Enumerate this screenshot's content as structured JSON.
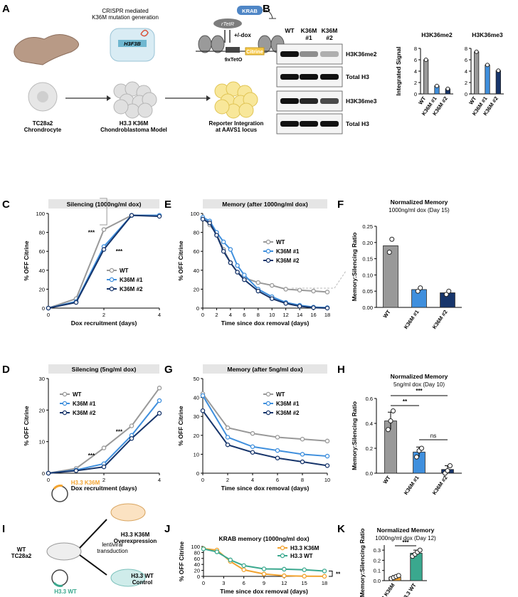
{
  "panel_letters": [
    "A",
    "B",
    "C",
    "D",
    "E",
    "F",
    "G",
    "H",
    "I",
    "J",
    "K"
  ],
  "colors": {
    "wt": "#999999",
    "k1": "#3f8fdd",
    "k2": "#17356b",
    "k36m_ox": "#f2a330",
    "wt_ox": "#3aa88e"
  },
  "panel_a": {
    "crispr_label": "CRISPR mediated\nK36M mutation generation",
    "gene_label": "H3F3B",
    "krab": "KRAB",
    "rtetr": "rTetR",
    "dox": "+/-dox",
    "teto": "9xTetO",
    "citrine": "Citrine",
    "cell1": "TC28a2\nChrondrocyte",
    "cell2": "H3.3 K36M\nChondroblastoma Model",
    "cell3": "Reporter Integration\nat AAVS1 locus"
  },
  "panel_b": {
    "lanes": [
      "WT",
      "K36M\n#1",
      "K36M\n#2"
    ],
    "blot_labels": [
      "H3K36me2",
      "Total H3",
      "H3K36me3",
      "Total H3"
    ]
  },
  "chart_data": [
    {
      "id": "B1",
      "type": "bar",
      "title": "H3K36me2",
      "ylabel": "Integrated Signal",
      "categories": [
        "WT",
        "K36M #1",
        "K36M #2"
      ],
      "values": [
        6.0,
        1.4,
        0.9
      ],
      "ylim": [
        0,
        8
      ],
      "yticks": [
        0,
        2,
        4,
        6,
        8
      ]
    },
    {
      "id": "B2",
      "type": "bar",
      "title": "H3K36me3",
      "ylabel": "",
      "categories": [
        "WT",
        "K36M #1",
        "K36M #2"
      ],
      "values": [
        7.4,
        5.1,
        4.1
      ],
      "ylim": [
        0,
        8
      ],
      "yticks": [
        0,
        2,
        4,
        6,
        8
      ]
    },
    {
      "id": "C",
      "type": "line",
      "title": "Silencing (1000ng/ml dox)",
      "xlabel": "Dox recruitment (days)",
      "ylabel": "% OFF Citrine",
      "xlim": [
        0,
        4
      ],
      "ylim": [
        0,
        100
      ],
      "xticks": [
        0,
        2,
        4
      ],
      "yticks": [
        0,
        20,
        40,
        60,
        80,
        100
      ],
      "annotations": [
        "***",
        "***"
      ],
      "series": [
        {
          "name": "WT",
          "x": [
            0,
            1,
            2,
            3,
            4
          ],
          "values": [
            0,
            10,
            83,
            98,
            98
          ]
        },
        {
          "name": "K36M #1",
          "x": [
            0,
            1,
            2,
            3,
            4
          ],
          "values": [
            0,
            7,
            65,
            98,
            98
          ]
        },
        {
          "name": "K36M #2",
          "x": [
            0,
            1,
            2,
            3,
            4
          ],
          "values": [
            0,
            6,
            62,
            98,
            97
          ]
        }
      ]
    },
    {
      "id": "D",
      "type": "line",
      "title": "Silencing (5ng/ml dox)",
      "xlabel": "Dox recruitment (days)",
      "ylabel": "% OFF Citrine",
      "xlim": [
        0,
        4
      ],
      "ylim": [
        0,
        30
      ],
      "xticks": [
        0,
        2,
        4
      ],
      "yticks": [
        0,
        10,
        20,
        30
      ],
      "annotations": [
        "***",
        "***"
      ],
      "series": [
        {
          "name": "WT",
          "x": [
            0,
            1,
            2,
            3,
            4
          ],
          "values": [
            0,
            1.5,
            8,
            15,
            27
          ]
        },
        {
          "name": "K36M #1",
          "x": [
            0,
            1,
            2,
            3,
            4
          ],
          "values": [
            0,
            1,
            3,
            12,
            23
          ]
        },
        {
          "name": "K36M #2",
          "x": [
            0,
            1,
            2,
            3,
            4
          ],
          "values": [
            0,
            0.8,
            2,
            11,
            19
          ]
        }
      ]
    },
    {
      "id": "E",
      "type": "line",
      "title": "Memory (after 1000ng/ml dox)",
      "xlabel": "Time since dox removal (days)",
      "ylabel": "% OFF Citrine",
      "xlim": [
        0,
        18
      ],
      "ylim": [
        0,
        100
      ],
      "xticks": [
        0,
        2,
        4,
        6,
        8,
        10,
        12,
        14,
        16,
        18
      ],
      "yticks": [
        0,
        20,
        40,
        60,
        80,
        100
      ],
      "series": [
        {
          "name": "WT",
          "x": [
            0,
            1,
            2,
            3,
            4,
            5,
            6,
            8,
            10,
            12,
            14,
            16,
            18
          ],
          "values": [
            95,
            88,
            78,
            62,
            48,
            38,
            32,
            27,
            24,
            20,
            19,
            18,
            17
          ]
        },
        {
          "name": "K36M #1",
          "x": [
            0,
            1,
            2,
            3,
            4,
            5,
            6,
            8,
            10,
            12,
            14,
            16,
            18
          ],
          "values": [
            96,
            92,
            80,
            70,
            62,
            45,
            35,
            20,
            12,
            6,
            3,
            1,
            0.5
          ]
        },
        {
          "name": "K36M #2",
          "x": [
            0,
            1,
            2,
            3,
            4,
            5,
            6,
            8,
            10,
            12,
            14,
            16,
            18
          ],
          "values": [
            94,
            90,
            77,
            60,
            48,
            38,
            30,
            18,
            10,
            5,
            2,
            0.5,
            0
          ]
        }
      ]
    },
    {
      "id": "F",
      "type": "bar",
      "title": "Normalized Memory",
      "subtitle": "1000ng/ml dox (Day 15)",
      "ylabel": "Memory:Silencing Ratio",
      "categories": [
        "WT",
        "K36M #1",
        "K36M #2"
      ],
      "values": [
        0.19,
        0.055,
        0.045
      ],
      "points": [
        [
          0.17,
          0.21
        ],
        [
          0.05,
          0.06
        ],
        [
          0.04,
          0.05
        ]
      ],
      "ylim": [
        0,
        0.25
      ],
      "yticks": [
        0.0,
        0.05,
        0.1,
        0.15,
        0.2,
        0.25
      ]
    },
    {
      "id": "G",
      "type": "line",
      "title": "Memory (after 5ng/ml dox)",
      "xlabel": "Time since dox removal (days)",
      "ylabel": "% OFF Citrine",
      "xlim": [
        0,
        10
      ],
      "ylim": [
        0,
        50
      ],
      "xticks": [
        0,
        2,
        4,
        6,
        8,
        10
      ],
      "yticks": [
        0,
        10,
        20,
        30,
        40,
        50
      ],
      "series": [
        {
          "name": "WT",
          "x": [
            0,
            2,
            4,
            6,
            8,
            10
          ],
          "values": [
            42,
            24,
            21,
            19,
            18,
            17
          ]
        },
        {
          "name": "K36M #1",
          "x": [
            0,
            2,
            4,
            6,
            8,
            10
          ],
          "values": [
            41,
            19,
            14,
            12,
            10,
            9
          ]
        },
        {
          "name": "K36M #2",
          "x": [
            0,
            2,
            4,
            6,
            8,
            10
          ],
          "values": [
            33,
            15,
            11,
            8,
            6,
            4
          ]
        }
      ]
    },
    {
      "id": "H",
      "type": "bar",
      "title": "Normalized Memory",
      "subtitle": "5ng/ml dox (Day 10)",
      "ylabel": "Memory:Silencing Ratio",
      "categories": [
        "WT",
        "K36M #1",
        "K36M #2"
      ],
      "values": [
        0.42,
        0.17,
        0.03
      ],
      "errors": [
        0.07,
        0.04,
        0.03
      ],
      "points": [
        [
          0.35,
          0.42,
          0.5
        ],
        [
          0.13,
          0.18,
          0.2
        ],
        [
          0.0,
          0.02,
          0.06
        ]
      ],
      "ylim": [
        0,
        0.6
      ],
      "yticks": [
        0.0,
        0.2,
        0.4,
        0.6
      ],
      "annotations": [
        "***",
        "**",
        "ns"
      ]
    },
    {
      "id": "J",
      "type": "line",
      "title": "KRAB memory (1000ng/ml dox)",
      "xlabel": "Time since dox removal (days)",
      "ylabel": "% OFF Citrine",
      "xlim": [
        0,
        18
      ],
      "ylim": [
        0,
        100
      ],
      "xticks": [
        0,
        3,
        6,
        9,
        12,
        15,
        18
      ],
      "yticks": [
        0,
        20,
        40,
        60,
        80,
        100
      ],
      "annotations": [
        "**"
      ],
      "series": [
        {
          "name": "H3.3 K36M",
          "x": [
            0,
            2,
            4,
            6,
            9,
            12,
            15,
            18
          ],
          "values": [
            93,
            88,
            50,
            22,
            8,
            2,
            0.5,
            0.2
          ]
        },
        {
          "name": "H3.3 WT",
          "x": [
            0,
            2,
            4,
            6,
            9,
            12,
            15,
            18
          ],
          "values": [
            92,
            82,
            55,
            36,
            25,
            24,
            22,
            18
          ]
        }
      ]
    },
    {
      "id": "K",
      "type": "bar",
      "title": "Normalized Memory",
      "subtitle": "1000ng/ml dox (Day 12)",
      "ylabel": "Memory:Silencing Ratio",
      "categories": [
        "H3.3 K36M",
        "H3.3 WT"
      ],
      "values": [
        0.035,
        0.27
      ],
      "errors": [
        0.015,
        0.03
      ],
      "points": [
        [
          0.02,
          0.03,
          0.04,
          0.05
        ],
        [
          0.24,
          0.26,
          0.28,
          0.3
        ]
      ],
      "ylim": [
        0,
        0.35
      ],
      "yticks": [
        0.0,
        0.1,
        0.2,
        0.3
      ],
      "annotations": [
        "***"
      ]
    }
  ],
  "panel_i": {
    "source": "WT\nTC28a2",
    "k36m": "H3.3 K36M",
    "wt": "H3.3 WT",
    "lenti": "lentiviral\ntransduction",
    "dest1": "H3.3 K36M\nOverexpression",
    "dest2": "H3.3 WT\nControl"
  }
}
